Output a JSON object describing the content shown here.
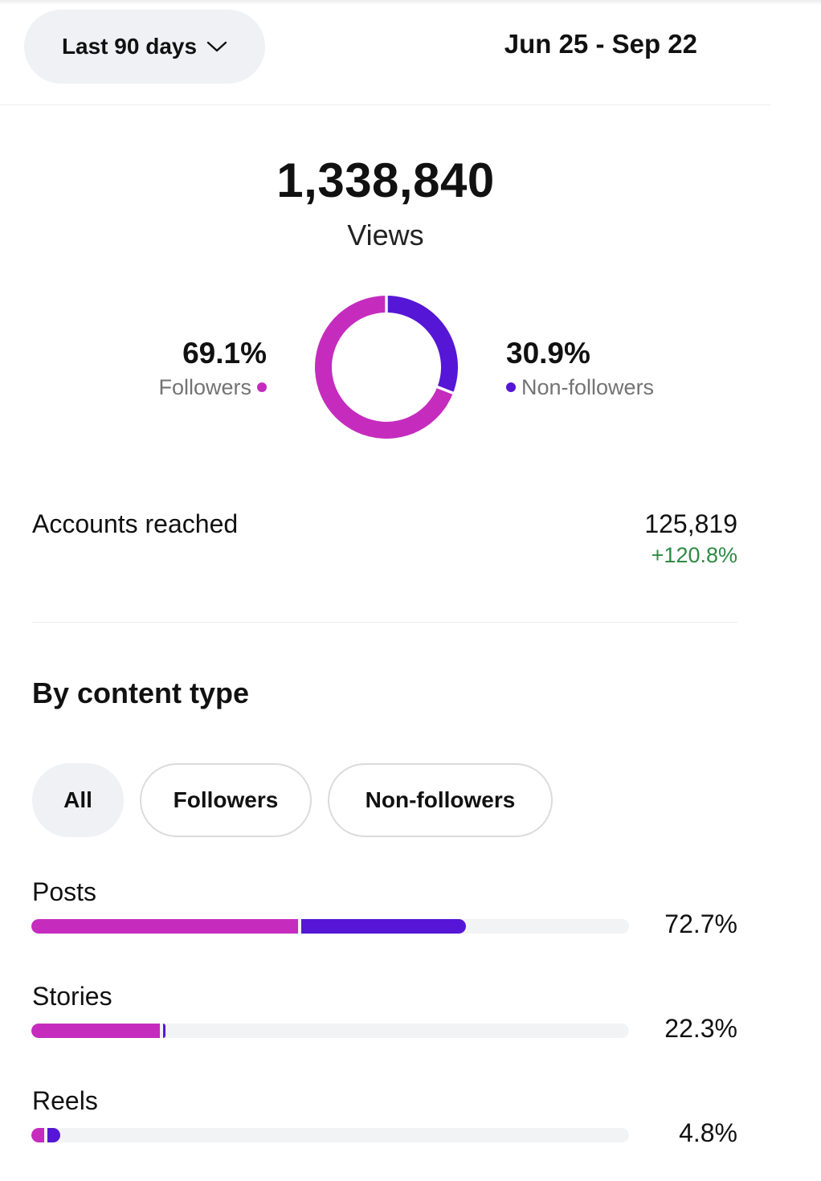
{
  "header": {
    "range_label": "Last 90 days",
    "date_range": "Jun 25 - Sep 22"
  },
  "views": {
    "total": "1,338,840",
    "label": "Views"
  },
  "audience_split": {
    "followers": {
      "percent": "69.1%",
      "label": "Followers",
      "value": 69.1,
      "color": "#c52cbe"
    },
    "non_followers": {
      "percent": "30.9%",
      "label": "Non-followers",
      "value": 30.9,
      "color": "#5616d6"
    }
  },
  "accounts_reached": {
    "label": "Accounts reached",
    "value": "125,819",
    "change": "+120.8%"
  },
  "content_type": {
    "title": "By content type",
    "filters": [
      "All",
      "Followers",
      "Non-followers"
    ],
    "active_filter": "All",
    "rows": [
      {
        "label": "Posts",
        "percent": "72.7%",
        "followers_share": 44.9,
        "non_followers_share": 27.8
      },
      {
        "label": "Stories",
        "percent": "22.3%",
        "followers_share": 21.8,
        "non_followers_share": 0.6
      },
      {
        "label": "Reels",
        "percent": "4.8%",
        "followers_share": 2.4,
        "non_followers_share": 2.4
      }
    ]
  }
}
